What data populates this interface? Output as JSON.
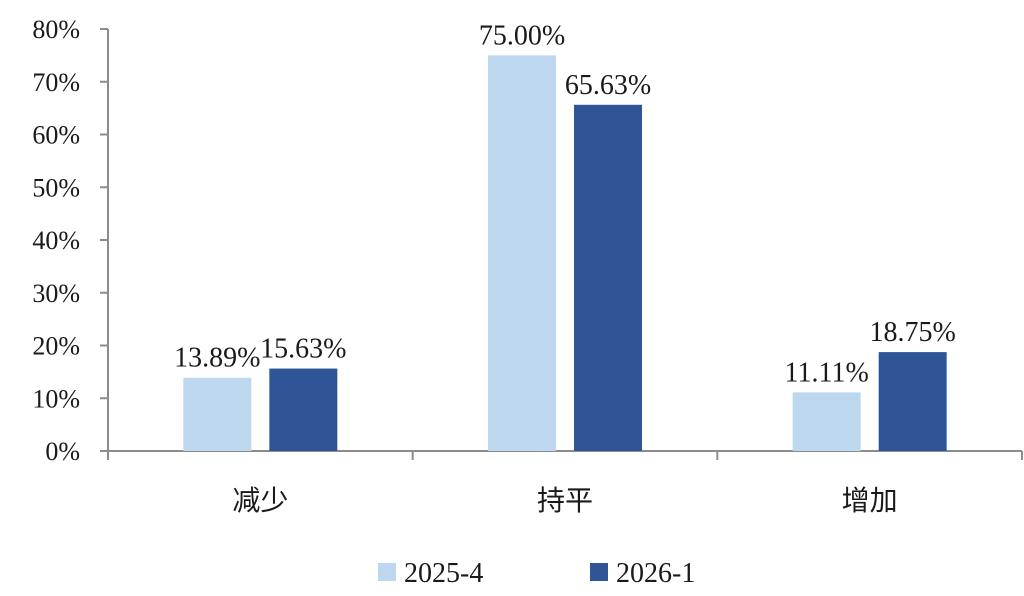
{
  "chart_data": {
    "type": "bar",
    "title": "",
    "xlabel": "",
    "ylabel": "",
    "categories": [
      "减少",
      "持平",
      "增加"
    ],
    "series": [
      {
        "name": "2025-4",
        "color": "#bdd7ee",
        "values": [
          13.89,
          75.0,
          11.11
        ],
        "labels": [
          "13.89%",
          "75.00%",
          "11.11%"
        ]
      },
      {
        "name": "2026-1",
        "color": "#2f5597",
        "values": [
          15.63,
          65.63,
          18.75
        ],
        "labels": [
          "15.63%",
          "65.63%",
          "18.75%"
        ]
      }
    ],
    "ylim": [
      0,
      80
    ],
    "yticks": [
      0,
      10,
      20,
      30,
      40,
      50,
      60,
      70,
      80
    ],
    "ytick_labels": [
      "0%",
      "10%",
      "20%",
      "30%",
      "40%",
      "50%",
      "60%",
      "70%",
      "80%"
    ],
    "grid": false,
    "legend_position": "bottom"
  }
}
